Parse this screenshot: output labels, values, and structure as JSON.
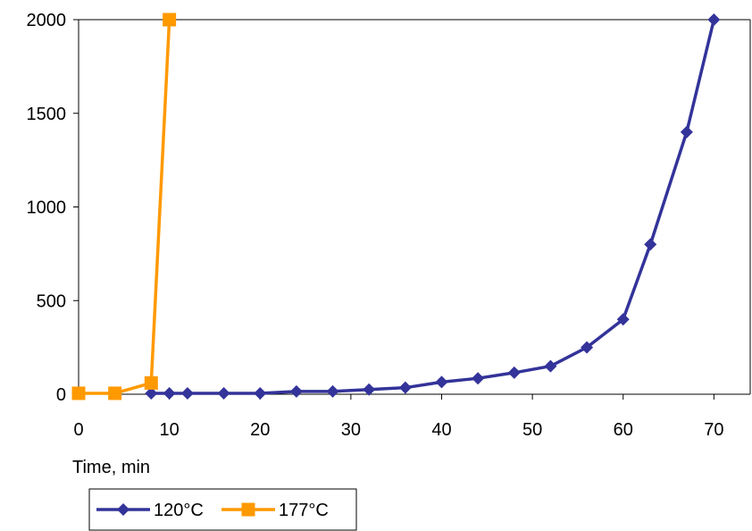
{
  "chart_data": {
    "type": "line",
    "title": "",
    "xlabel": "Time, min",
    "ylabel": "",
    "xlim": [
      0,
      74
    ],
    "ylim": [
      0,
      2000
    ],
    "xticks": [
      0,
      10,
      20,
      30,
      40,
      50,
      60,
      70
    ],
    "yticks": [
      0,
      500,
      1000,
      1500,
      2000
    ],
    "grid": false,
    "legend_position": "bottom-left",
    "series": [
      {
        "name": "120°C",
        "color": "#33339A",
        "marker": "diamond",
        "x": [
          8,
          10,
          12,
          16,
          20,
          24,
          28,
          32,
          36,
          40,
          44,
          48,
          52,
          56,
          60,
          63,
          67,
          70
        ],
        "y": [
          5,
          5,
          5,
          5,
          5,
          15,
          15,
          25,
          35,
          65,
          85,
          115,
          150,
          250,
          400,
          800,
          1400,
          2000
        ]
      },
      {
        "name": "177°C",
        "color": "#FF9900",
        "marker": "square",
        "x": [
          0,
          4,
          8,
          10
        ],
        "y": [
          5,
          5,
          60,
          2000
        ]
      }
    ]
  }
}
